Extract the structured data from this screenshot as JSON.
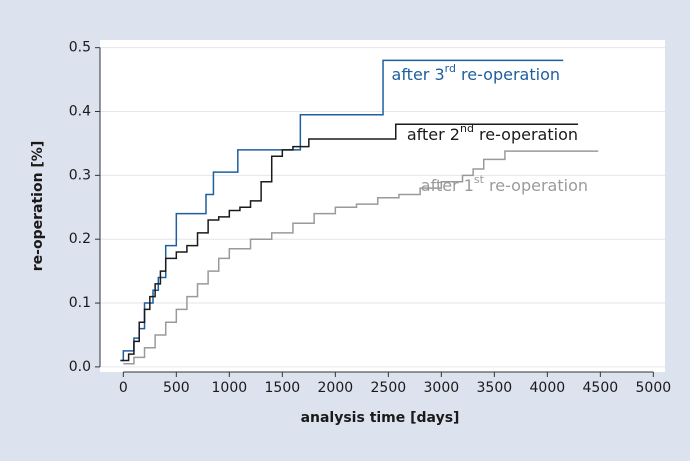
{
  "chart_data": {
    "type": "step",
    "xlabel": "analysis time [days]",
    "ylabel": "re-operation [%]",
    "xlim": [
      -220,
      5110
    ],
    "ylim": [
      -0.008,
      0.512
    ],
    "xticks": [
      0,
      500,
      1000,
      1500,
      2000,
      2500,
      3000,
      3500,
      4000,
      4500,
      5000
    ],
    "yticks": [
      {
        "value": 0,
        "label": "0.0"
      },
      0.1,
      0.2,
      0.3,
      0.4,
      0.5
    ],
    "grid": true,
    "series": [
      {
        "name": "after 3rd re-operation",
        "color": "#1f5fa0",
        "x": [
          -30,
          0,
          100,
          150,
          200,
          280,
          330,
          400,
          500,
          780,
          850,
          1080,
          1670,
          2450,
          4150
        ],
        "values": [
          0.01,
          0.025,
          0.045,
          0.06,
          0.1,
          0.12,
          0.14,
          0.19,
          0.24,
          0.27,
          0.305,
          0.34,
          0.395,
          0.48,
          0.48
        ]
      },
      {
        "name": "after 2nd re-operation",
        "color": "#1a1a1a",
        "x": [
          -20,
          50,
          100,
          150,
          200,
          250,
          300,
          350,
          400,
          500,
          600,
          700,
          800,
          900,
          1000,
          1100,
          1200,
          1300,
          1400,
          1500,
          1600,
          1750,
          2570,
          4290
        ],
        "values": [
          0.01,
          0.02,
          0.04,
          0.07,
          0.09,
          0.11,
          0.13,
          0.15,
          0.17,
          0.18,
          0.19,
          0.21,
          0.23,
          0.235,
          0.245,
          0.25,
          0.26,
          0.29,
          0.33,
          0.34,
          0.345,
          0.357,
          0.38,
          0.38
        ]
      },
      {
        "name": "after 1st re-operation",
        "color": "#9a9a9a",
        "x": [
          0,
          100,
          200,
          300,
          400,
          500,
          600,
          700,
          800,
          900,
          1000,
          1200,
          1400,
          1600,
          1800,
          2000,
          2200,
          2400,
          2600,
          2800,
          3000,
          3200,
          3300,
          3400,
          3600,
          4480
        ],
        "values": [
          0.005,
          0.015,
          0.03,
          0.05,
          0.07,
          0.09,
          0.11,
          0.13,
          0.15,
          0.17,
          0.185,
          0.2,
          0.21,
          0.225,
          0.24,
          0.25,
          0.255,
          0.265,
          0.27,
          0.28,
          0.29,
          0.3,
          0.31,
          0.325,
          0.338,
          0.338
        ]
      }
    ]
  }
}
